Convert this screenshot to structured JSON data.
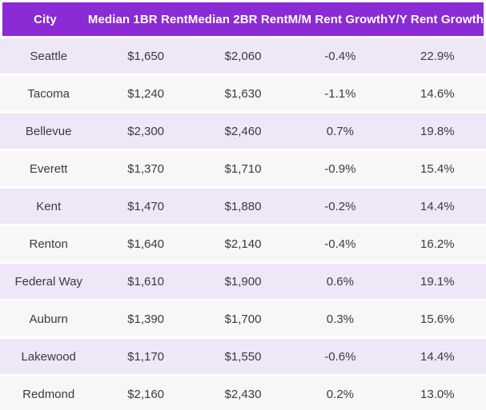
{
  "colors": {
    "header_bg": "#8A2BD6",
    "header_text": "#FFFFFF",
    "row_odd_bg": "#EFE6F8",
    "row_even_bg": "#F7F7F7",
    "body_text": "#3B3B3B",
    "gap": "#FFFFFF"
  },
  "table": {
    "columns": [
      "City",
      "Median 1BR Rent",
      "Median 2BR Rent",
      "M/M Rent Growth",
      "Y/Y Rent Growth"
    ],
    "rows": [
      [
        "Seattle",
        "$1,650",
        "$2,060",
        "-0.4%",
        "22.9%"
      ],
      [
        "Tacoma",
        "$1,240",
        "$1,630",
        "-1.1%",
        "14.6%"
      ],
      [
        "Bellevue",
        "$2,300",
        "$2,460",
        "0.7%",
        "19.8%"
      ],
      [
        "Everett",
        "$1,370",
        "$1,710",
        "-0.9%",
        "15.4%"
      ],
      [
        "Kent",
        "$1,470",
        "$1,880",
        "-0.2%",
        "14.4%"
      ],
      [
        "Renton",
        "$1,640",
        "$2,140",
        "-0.4%",
        "16.2%"
      ],
      [
        "Federal Way",
        "$1,610",
        "$1,900",
        "0.6%",
        "19.1%"
      ],
      [
        "Auburn",
        "$1,390",
        "$1,700",
        "0.3%",
        "15.6%"
      ],
      [
        "Lakewood",
        "$1,170",
        "$1,550",
        "-0.6%",
        "14.4%"
      ],
      [
        "Redmond",
        "$2,160",
        "$2,430",
        "0.2%",
        "13.0%"
      ]
    ]
  },
  "chart_data": {
    "type": "table",
    "title": "",
    "columns": [
      "City",
      "Median 1BR Rent",
      "Median 2BR Rent",
      "M/M Rent Growth",
      "Y/Y Rent Growth"
    ],
    "categories": [
      "Seattle",
      "Tacoma",
      "Bellevue",
      "Everett",
      "Kent",
      "Renton",
      "Federal Way",
      "Auburn",
      "Lakewood",
      "Redmond"
    ],
    "series": [
      {
        "name": "Median 1BR Rent",
        "values": [
          1650,
          1240,
          2300,
          1370,
          1470,
          1640,
          1610,
          1390,
          1170,
          2160
        ]
      },
      {
        "name": "Median 2BR Rent",
        "values": [
          2060,
          1630,
          2460,
          1710,
          1880,
          2140,
          1900,
          1700,
          1550,
          2430
        ]
      },
      {
        "name": "M/M Rent Growth %",
        "values": [
          -0.4,
          -1.1,
          0.7,
          -0.9,
          -0.2,
          -0.4,
          0.6,
          0.3,
          -0.6,
          0.2
        ]
      },
      {
        "name": "Y/Y Rent Growth %",
        "values": [
          22.9,
          14.6,
          19.8,
          15.4,
          14.4,
          16.2,
          19.1,
          15.6,
          14.4,
          13.0
        ]
      }
    ]
  }
}
